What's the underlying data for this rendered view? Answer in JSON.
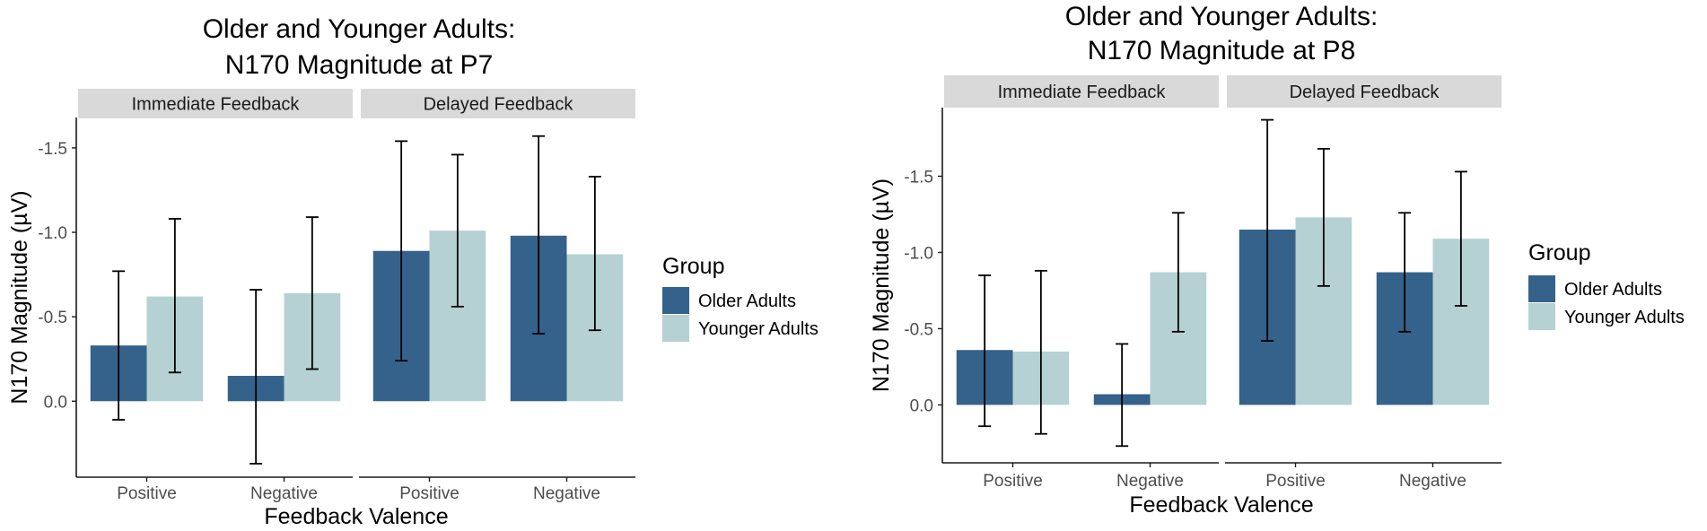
{
  "chart_data": [
    {
      "type": "bar",
      "title_lines": [
        "Older and Younger Adults:",
        "N170 Magnitude at P7"
      ],
      "xlabel": "Feedback Valence",
      "ylabel": "N170 Magnitude (µV)",
      "ylim": [
        0.45,
        -1.68
      ],
      "yticks": [
        {
          "value": -1.5,
          "label": "-1.5"
        },
        {
          "value": -1.0,
          "label": "-1.0"
        },
        {
          "value": -0.5,
          "label": "-0.5"
        },
        {
          "value": 0.0,
          "label": "0.0"
        }
      ],
      "legend": {
        "title": "Group",
        "position": "right"
      },
      "panels": [
        {
          "label": "Immediate Feedback",
          "categories": [
            "Positive",
            "Negative"
          ],
          "series": [
            {
              "name": "Older Adults",
              "values": [
                -0.33,
                -0.15
              ],
              "err_low": [
                0.11,
                0.37
              ],
              "err_high": [
                -0.77,
                -0.66
              ]
            },
            {
              "name": "Younger Adults",
              "values": [
                -0.62,
                -0.64
              ],
              "err_low": [
                -0.17,
                -0.19
              ],
              "err_high": [
                -1.08,
                -1.09
              ]
            }
          ]
        },
        {
          "label": "Delayed Feedback",
          "categories": [
            "Positive",
            "Negative"
          ],
          "series": [
            {
              "name": "Older Adults",
              "values": [
                -0.89,
                -0.98
              ],
              "err_low": [
                -0.24,
                -0.4
              ],
              "err_high": [
                -1.54,
                -1.57
              ]
            },
            {
              "name": "Younger Adults",
              "values": [
                -1.01,
                -0.87
              ],
              "err_low": [
                -0.56,
                -0.42
              ],
              "err_high": [
                -1.46,
                -1.33
              ]
            }
          ]
        }
      ]
    },
    {
      "type": "bar",
      "title_lines": [
        "Older and Younger Adults:",
        "N170 Magnitude at P8"
      ],
      "xlabel": "Feedback Valence",
      "ylabel": "N170 Magnitude (µV)",
      "ylim": [
        0.38,
        -1.95
      ],
      "yticks": [
        {
          "value": -1.5,
          "label": "-1.5"
        },
        {
          "value": -1.0,
          "label": "-1.0"
        },
        {
          "value": -0.5,
          "label": "-0.5"
        },
        {
          "value": 0.0,
          "label": "0.0"
        }
      ],
      "legend": {
        "title": "Group",
        "position": "right"
      },
      "panels": [
        {
          "label": "Immediate Feedback",
          "categories": [
            "Positive",
            "Negative"
          ],
          "series": [
            {
              "name": "Older Adults",
              "values": [
                -0.36,
                -0.07
              ],
              "err_low": [
                0.14,
                0.27
              ],
              "err_high": [
                -0.85,
                -0.4
              ]
            },
            {
              "name": "Younger Adults",
              "values": [
                -0.35,
                -0.87
              ],
              "err_low": [
                0.19,
                -0.48
              ],
              "err_high": [
                -0.88,
                -1.26
              ]
            }
          ]
        },
        {
          "label": "Delayed Feedback",
          "categories": [
            "Positive",
            "Negative"
          ],
          "series": [
            {
              "name": "Older Adults",
              "values": [
                -1.15,
                -0.87
              ],
              "err_low": [
                -0.42,
                -0.48
              ],
              "err_high": [
                -1.87,
                -1.26
              ]
            },
            {
              "name": "Younger Adults",
              "values": [
                -1.23,
                -1.09
              ],
              "err_low": [
                -0.78,
                -0.65
              ],
              "err_high": [
                -1.68,
                -1.53
              ]
            }
          ]
        }
      ]
    }
  ],
  "colors": {
    "older_adults": "#35628a",
    "younger_adults": "#b5d1d4",
    "strip": "#d9d9d9",
    "axis": "#1a1a1a",
    "text": "#000000",
    "tick_text": "#4d4d4d"
  }
}
